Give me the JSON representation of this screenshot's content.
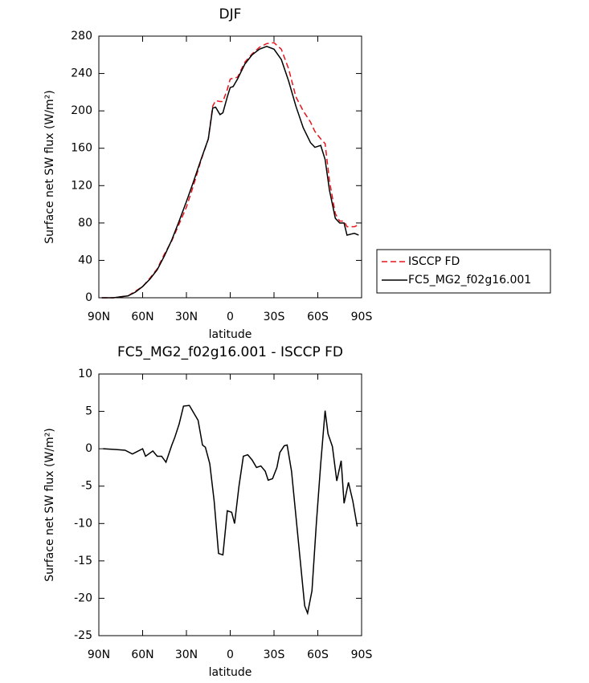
{
  "chart_data": [
    {
      "type": "line",
      "title": "DJF",
      "xlabel": "latitude",
      "ylabel": "Surface net SW flux (W/m²)",
      "x": [
        88,
        80,
        70,
        65,
        60,
        55,
        50,
        45,
        40,
        35,
        30,
        25,
        20,
        15,
        12,
        10,
        7,
        5,
        2,
        0,
        -2,
        -5,
        -10,
        -15,
        -20,
        -25,
        -30,
        -35,
        -40,
        -45,
        -50,
        -55,
        -58,
        -62,
        -65,
        -68,
        -72,
        -75,
        -78,
        -80,
        -85,
        -88
      ],
      "series": [
        {
          "name": "ISCCP FD",
          "color": "#e8141b",
          "dash": true,
          "values": [
            0,
            0,
            2,
            7,
            12,
            21,
            31,
            47,
            61,
            79,
            97,
            121,
            147,
            170,
            205,
            211,
            210,
            210,
            223,
            234,
            235,
            236,
            252,
            261,
            268,
            272,
            273,
            266,
            245,
            215,
            200,
            188,
            178,
            170,
            165,
            125,
            90,
            82,
            82,
            76,
            76,
            78
          ]
        },
        {
          "name": "FC5_MG2_f02g16.001",
          "color": "#000000",
          "dash": false,
          "values": [
            0,
            0,
            2,
            6,
            12,
            20,
            30,
            45,
            62,
            82,
            103,
            125,
            148,
            170,
            203,
            204,
            196,
            198,
            215,
            225,
            226,
            234,
            250,
            260,
            266,
            269,
            266,
            255,
            232,
            205,
            182,
            166,
            161,
            163,
            148,
            115,
            85,
            80,
            80,
            67,
            69,
            67
          ]
        }
      ],
      "xlim": [
        90,
        -90
      ],
      "xticks": [
        {
          "value": 90,
          "label": "90N"
        },
        {
          "value": 60,
          "label": "60N"
        },
        {
          "value": 30,
          "label": "30N"
        },
        0,
        {
          "value": -30,
          "label": "30S"
        },
        {
          "value": -60,
          "label": "60S"
        },
        {
          "value": -90,
          "label": "90S"
        }
      ],
      "ylim": [
        0,
        280
      ],
      "yticks": [
        0,
        40,
        80,
        120,
        160,
        200,
        240,
        280
      ],
      "legend": "right"
    },
    {
      "type": "line",
      "title": "FC5_MG2_f02g16.001 - ISCCP FD",
      "xlabel": "latitude",
      "ylabel": "Surface net SW flux (W/m²)",
      "x": [
        87,
        78,
        72,
        67,
        63,
        60,
        58,
        53,
        50,
        47,
        44,
        40,
        38,
        35,
        32,
        28,
        22,
        19,
        17,
        14,
        11,
        8,
        5,
        2,
        -1,
        -3,
        -6,
        -9,
        -12,
        -15,
        -18,
        -21,
        -24,
        -26,
        -29,
        -32,
        -34,
        -37,
        -39,
        -42,
        -45,
        -48,
        -51,
        -53,
        -56,
        -59,
        -62,
        -65,
        -67,
        -70,
        -73,
        -76,
        -78,
        -81,
        -84,
        -87
      ],
      "values": [
        0,
        -0.1,
        -0.2,
        -0.7,
        -0.3,
        0,
        -1,
        -0.3,
        -1,
        -1,
        -1.8,
        0.5,
        1.5,
        3.3,
        5.7,
        5.8,
        3.8,
        0.5,
        0.2,
        -2,
        -7,
        -14,
        -14.2,
        -8.3,
        -8.5,
        -10,
        -5,
        -1,
        -0.8,
        -1.5,
        -2.5,
        -2.3,
        -3,
        -4.2,
        -4,
        -2.5,
        -0.5,
        0.4,
        0.5,
        -3,
        -9,
        -15,
        -21,
        -22,
        -19,
        -10,
        -2,
        5.1,
        2,
        0.3,
        -4.3,
        -1.6,
        -7.3,
        -4.5,
        -7,
        -10.4
      ],
      "color": "#000000",
      "xlim": [
        90,
        -90
      ],
      "xticks": [
        {
          "value": 90,
          "label": "90N"
        },
        {
          "value": 60,
          "label": "60N"
        },
        {
          "value": 30,
          "label": "30N"
        },
        0,
        {
          "value": -30,
          "label": "30S"
        },
        {
          "value": -60,
          "label": "60S"
        },
        {
          "value": -90,
          "label": "90S"
        }
      ],
      "ylim": [
        -25,
        10
      ],
      "yticks": [
        -25,
        -20,
        -15,
        -10,
        -5,
        0,
        5,
        10
      ]
    }
  ]
}
